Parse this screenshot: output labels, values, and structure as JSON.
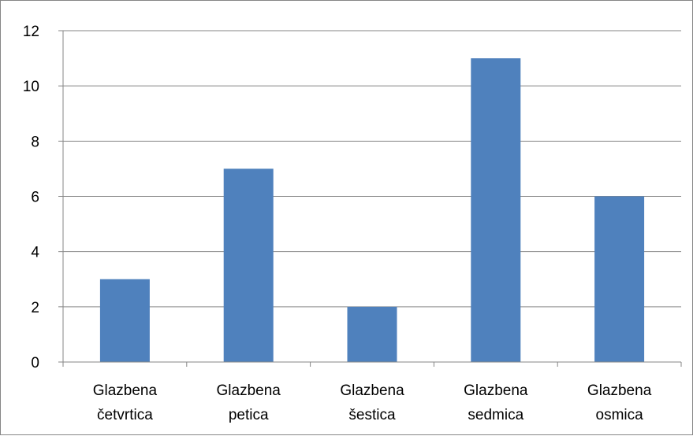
{
  "chart_data": {
    "type": "bar",
    "categories": [
      [
        "Glazbena",
        "četvrtica"
      ],
      [
        "Glazbena",
        "petica"
      ],
      [
        "Glazbena",
        "šestica"
      ],
      [
        "Glazbena",
        "sedmica"
      ],
      [
        "Glazbena",
        "osmica"
      ]
    ],
    "values": [
      3,
      7,
      2,
      11,
      6
    ],
    "ylim": [
      0,
      12
    ],
    "y_ticks": [
      "0",
      "2",
      "4",
      "6",
      "8",
      "10",
      "12"
    ],
    "grid": true,
    "legend": "none",
    "title": "",
    "xlabel": "",
    "ylabel": "",
    "colors": {
      "bar": "#4f81bd",
      "grid": "#868686",
      "axis": "#868686",
      "border": "#868686"
    }
  }
}
